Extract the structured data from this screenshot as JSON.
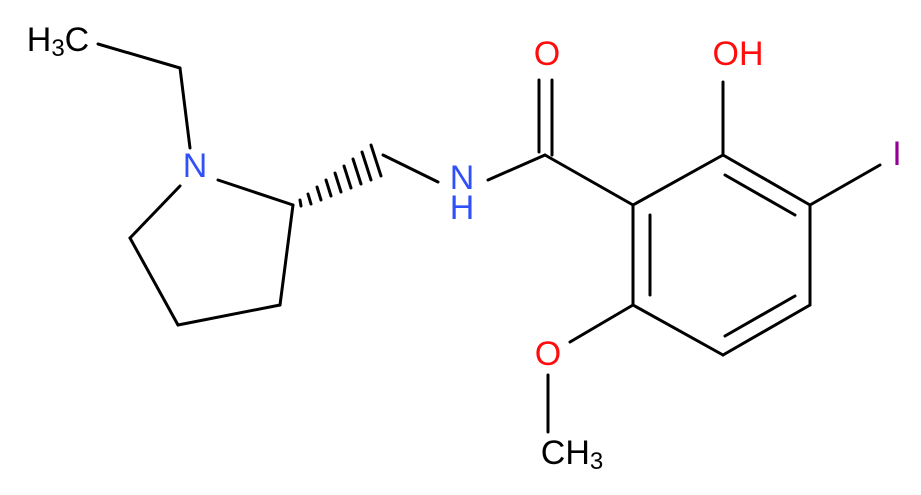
{
  "atoms": [
    {
      "text": "H",
      "sub": "3",
      "tail": "C"
    },
    {
      "text": "N"
    },
    {
      "text": "N",
      "below": "H"
    },
    {
      "text": "O"
    },
    {
      "text": "OH"
    },
    {
      "text": "I"
    },
    {
      "text": "O"
    },
    {
      "text": "CH",
      "sub": "3"
    }
  ]
}
